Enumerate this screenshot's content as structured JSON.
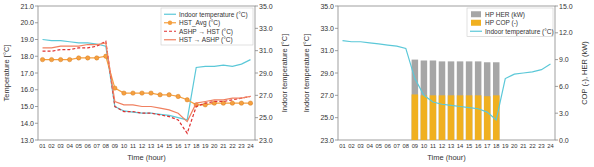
{
  "chart_data": [
    {
      "type": "line",
      "x_label": "Time (hour)",
      "y_label": "Temperature [°C]",
      "y2_label": "Indoor temperature [°C]",
      "categories": [
        "01",
        "02",
        "03",
        "04",
        "05",
        "06",
        "07",
        "08",
        "09",
        "10",
        "11",
        "12",
        "13",
        "14",
        "15",
        "16",
        "17",
        "18",
        "19",
        "20",
        "21",
        "22",
        "23",
        "24"
      ],
      "ylim": [
        13,
        21
      ],
      "yticks": [
        {
          "value": 13,
          "label": "13.0"
        },
        {
          "value": 14,
          "label": "14.0"
        },
        {
          "value": 15,
          "label": "15.0"
        },
        {
          "value": 16,
          "label": "16.0"
        },
        {
          "value": 17,
          "label": "17.0"
        },
        {
          "value": 18,
          "label": "18.0"
        },
        {
          "value": 19,
          "label": "19.0"
        },
        {
          "value": 20,
          "label": "20.0"
        },
        {
          "value": 21,
          "label": "21.0"
        }
      ],
      "y2lim": [
        23,
        35
      ],
      "y2ticks": [
        {
          "value": 23,
          "label": "23.0"
        },
        {
          "value": 25,
          "label": "25.0"
        },
        {
          "value": 27,
          "label": "27.0"
        },
        {
          "value": 29,
          "label": "29.0"
        },
        {
          "value": 31,
          "label": "31.0"
        },
        {
          "value": 33,
          "label": "33.0"
        },
        {
          "value": 35,
          "label": "35.0"
        }
      ],
      "grid": false,
      "legend": "upper right",
      "series": [
        {
          "name": "Indoor temperature (°C)",
          "color": "#5bc8d8",
          "type": "line",
          "line_style": "solid",
          "axis": "y2",
          "values": [
            32.0,
            31.9,
            31.9,
            31.8,
            31.7,
            31.7,
            31.6,
            31.4,
            26.0,
            25.6,
            25.5,
            25.4,
            25.4,
            25.3,
            25.2,
            25.0,
            24.8,
            29.5,
            29.6,
            29.6,
            29.7,
            29.6,
            29.8,
            30.2
          ]
        },
        {
          "name": "HST_Avg (°C)",
          "color": "#f5a040",
          "type": "line",
          "line_style": "solid",
          "marker": "circle",
          "values": [
            17.8,
            17.8,
            17.8,
            17.8,
            17.9,
            17.9,
            17.9,
            18.0,
            16.1,
            15.8,
            15.8,
            15.8,
            15.8,
            15.7,
            15.7,
            15.6,
            15.4,
            15.1,
            15.1,
            15.2,
            15.2,
            15.2,
            15.2,
            15.2
          ]
        },
        {
          "name": "ASHP → HST (°C)",
          "color": "#e03030",
          "type": "line",
          "line_style": "dashed",
          "values": [
            18.3,
            18.3,
            18.4,
            18.4,
            18.5,
            18.5,
            18.6,
            18.9,
            15.0,
            14.7,
            14.7,
            14.6,
            14.6,
            14.5,
            14.4,
            14.2,
            13.4,
            15.0,
            15.2,
            15.3,
            15.3,
            15.4,
            15.5,
            15.6
          ]
        },
        {
          "name": "HST → ASHP (°C)",
          "color": "#f08060",
          "type": "line",
          "line_style": "solid",
          "values": [
            18.5,
            18.5,
            18.6,
            18.6,
            18.6,
            18.7,
            18.7,
            18.8,
            15.3,
            15.1,
            15.1,
            15.0,
            15.0,
            14.9,
            14.8,
            14.6,
            14.1,
            15.2,
            15.3,
            15.4,
            15.4,
            15.5,
            15.5,
            15.6
          ]
        }
      ]
    },
    {
      "type": "bar",
      "x_label": "Time (hour)",
      "y_label": "Indoor temperature [°C]",
      "y2_label": "COP (-), HER (kW)",
      "categories": [
        "01",
        "02",
        "03",
        "04",
        "05",
        "06",
        "07",
        "08",
        "09",
        "10",
        "11",
        "12",
        "13",
        "14",
        "15",
        "16",
        "17",
        "18",
        "19",
        "20",
        "21",
        "22",
        "23",
        "24"
      ],
      "ylim": [
        23,
        35
      ],
      "yticks": [
        {
          "value": 23,
          "label": "23.0"
        },
        {
          "value": 25,
          "label": "25.0"
        },
        {
          "value": 27,
          "label": "27.0"
        },
        {
          "value": 29,
          "label": "29.0"
        },
        {
          "value": 31,
          "label": "31.0"
        },
        {
          "value": 33,
          "label": "33.0"
        },
        {
          "value": 35,
          "label": "35.0"
        }
      ],
      "y2lim": [
        0,
        15
      ],
      "y2ticks": [
        {
          "value": 0,
          "label": "0.0"
        },
        {
          "value": 3,
          "label": "3.0"
        },
        {
          "value": 6,
          "label": "6.0"
        },
        {
          "value": 9,
          "label": "9.0"
        },
        {
          "value": 12,
          "label": "12.0"
        },
        {
          "value": 15,
          "label": "15.0"
        }
      ],
      "grid": false,
      "legend": "upper right",
      "series": [
        {
          "name": "HP HER (kW)",
          "color": "#a6a6a6",
          "type": "bar",
          "axis": "y2",
          "values": [
            0,
            0,
            0,
            0,
            0,
            0,
            0,
            0,
            9.0,
            8.9,
            8.9,
            8.8,
            8.8,
            8.8,
            8.8,
            8.8,
            8.7,
            8.7,
            0,
            0,
            0,
            0,
            0,
            0
          ]
        },
        {
          "name": "HP COP (-)",
          "color": "#f0b020",
          "type": "bar",
          "axis": "y2",
          "values": [
            0,
            0,
            0,
            0,
            0,
            0,
            0,
            0,
            5.1,
            5.0,
            5.0,
            5.0,
            5.0,
            5.0,
            5.0,
            5.0,
            4.9,
            5.0,
            0,
            0,
            0,
            0,
            0,
            0
          ]
        },
        {
          "name": "Indoor temperature (°C)",
          "color": "#5bc8d8",
          "type": "line",
          "line_style": "solid",
          "values": [
            31.9,
            31.8,
            31.8,
            31.7,
            31.6,
            31.5,
            31.4,
            31.2,
            28.5,
            27.0,
            26.4,
            26.2,
            26.1,
            26.0,
            25.9,
            25.8,
            25.5,
            24.8,
            28.5,
            28.9,
            29.0,
            29.1,
            29.3,
            29.8
          ]
        }
      ]
    }
  ]
}
